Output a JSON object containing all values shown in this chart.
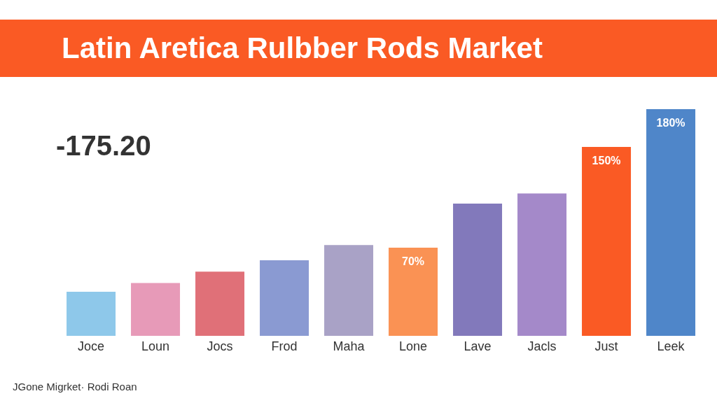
{
  "chart_data": {
    "type": "bar",
    "title": "Latin Aretica Rulbber Rods Market",
    "categories": [
      "Joce",
      "Loun",
      "Jocs",
      "Frod",
      "Maha",
      "Lone",
      "Lave",
      "Jacls",
      "Just",
      "Leek"
    ],
    "values": [
      35,
      42,
      51,
      60,
      72,
      70,
      105,
      113,
      150,
      180
    ],
    "colors": [
      "#8ec8ea",
      "#e79ab8",
      "#e07078",
      "#8a9ad2",
      "#a9a2c6",
      "#fa9254",
      "#8279bb",
      "#a489c9",
      "#fa5a24",
      "#4f86c9"
    ],
    "value_labels": [
      null,
      null,
      null,
      null,
      null,
      "70%",
      null,
      null,
      "150%",
      "180%"
    ],
    "annotations": [
      "-175.20",
      "JGone Migrket· Rodi Roan"
    ],
    "grid": false,
    "legend": false
  }
}
